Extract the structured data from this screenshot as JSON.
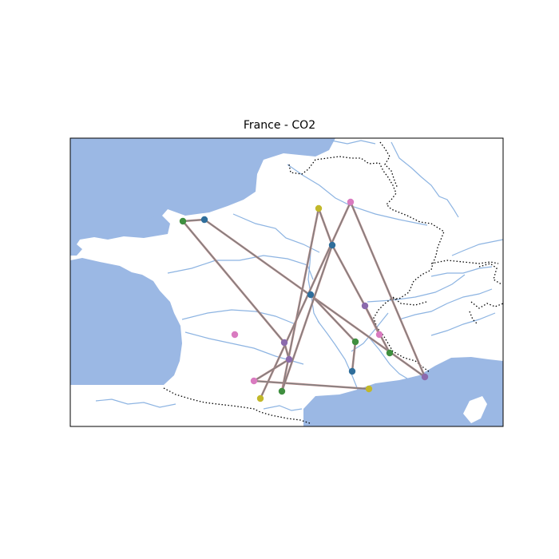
{
  "map": {
    "title": "France - CO2",
    "colors": {
      "water": "#9bb8e4",
      "river": "#8db4e2",
      "route": "#808080",
      "route_outline": "#bf8a8a",
      "border": "#000000"
    },
    "points": [
      {
        "id": "p1",
        "color": "#3f8f3f"
      },
      {
        "id": "p2",
        "color": "#2f6e9b"
      },
      {
        "id": "p3",
        "color": "#c2b82a"
      },
      {
        "id": "p4",
        "color": "#d97bc0"
      },
      {
        "id": "p5",
        "color": "#2f6e9b"
      },
      {
        "id": "p6",
        "color": "#2f6e9b"
      },
      {
        "id": "p7",
        "color": "#8b6aad"
      },
      {
        "id": "p8",
        "color": "#d97bc0"
      },
      {
        "id": "p9",
        "color": "#d97bc0"
      },
      {
        "id": "p10",
        "color": "#8b6aad"
      },
      {
        "id": "p11",
        "color": "#3f8f3f"
      },
      {
        "id": "p12",
        "color": "#3f8f3f"
      },
      {
        "id": "p13",
        "color": "#8b6aad"
      },
      {
        "id": "p14",
        "color": "#2f6e9b"
      },
      {
        "id": "p15",
        "color": "#8b6aad"
      },
      {
        "id": "p16",
        "color": "#d97bc0"
      },
      {
        "id": "p17",
        "color": "#c2b82a"
      },
      {
        "id": "p18",
        "color": "#3f8f3f"
      },
      {
        "id": "p19",
        "color": "#c2b82a"
      }
    ],
    "routes": [
      [
        "p1",
        "p2"
      ],
      [
        "p2",
        "p15"
      ],
      [
        "p1",
        "p10"
      ],
      [
        "p3",
        "p5"
      ],
      [
        "p3",
        "p18"
      ],
      [
        "p4",
        "p19"
      ],
      [
        "p4",
        "p15"
      ],
      [
        "p5",
        "p7"
      ],
      [
        "p7",
        "p9"
      ],
      [
        "p7",
        "p12"
      ],
      [
        "p6",
        "p11"
      ],
      [
        "p11",
        "p14"
      ],
      [
        "p10",
        "p13"
      ],
      [
        "p13",
        "p16"
      ],
      [
        "p16",
        "p17"
      ],
      [
        "p5",
        "p18"
      ]
    ]
  }
}
